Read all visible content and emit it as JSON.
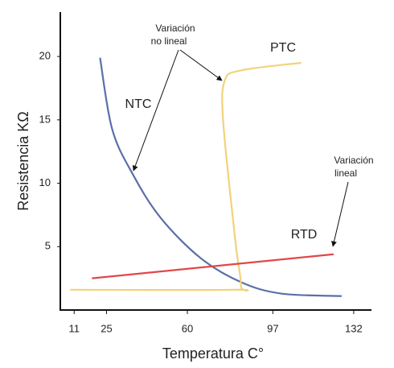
{
  "chart_data": {
    "type": "line",
    "x_label": "Temperatura C°",
    "y_label": "Resistencia KΩ",
    "xlim": [
      5,
      139
    ],
    "xticks": [
      11,
      25,
      60,
      97,
      132
    ],
    "ylim": [
      0,
      23.5
    ],
    "yticks": [
      5,
      10,
      15,
      20
    ],
    "series": [
      {
        "name": "NTC",
        "color": "#5b6fa8",
        "x": [
          22.2,
          27.4,
          36.1,
          48.3,
          65.7,
          83.2,
          100.6,
          126.8
        ],
        "values": [
          19.9,
          14.3,
          10.8,
          7.3,
          4.1,
          2.2,
          1.3,
          1.1
        ]
      },
      {
        "name": "PTC",
        "color": "#f2d27a",
        "x": [
          9.3,
          79.7,
          83.2,
          80.8,
          75.5,
          76.2,
          83.2,
          109.3
        ],
        "values": [
          1.6,
          1.6,
          1.9,
          5.4,
          14.9,
          18.1,
          18.9,
          19.5
        ]
      },
      {
        "name": "RTD",
        "color": "#e04848",
        "x": [
          18.7,
          123.3
        ],
        "values": [
          2.5,
          4.4
        ]
      }
    ],
    "annotations": [
      [
        "Variación",
        "no lineal"
      ],
      [
        "Variación",
        "lineal"
      ]
    ]
  }
}
